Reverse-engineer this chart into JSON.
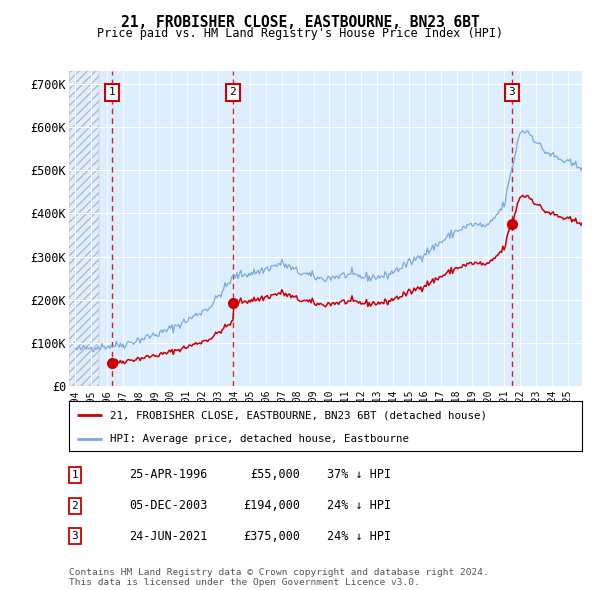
{
  "title": "21, FROBISHER CLOSE, EASTBOURNE, BN23 6BT",
  "subtitle": "Price paid vs. HM Land Registry's House Price Index (HPI)",
  "property_label": "21, FROBISHER CLOSE, EASTBOURNE, BN23 6BT (detached house)",
  "hpi_label": "HPI: Average price, detached house, Eastbourne",
  "sale_dates_num": [
    1996.32,
    2003.92,
    2021.48
  ],
  "sale_prices": [
    55000,
    194000,
    375000
  ],
  "sale_labels": [
    "1",
    "2",
    "3"
  ],
  "sale_annotations": [
    {
      "label": "1",
      "date": "25-APR-1996",
      "price": "£55,000",
      "hpi": "37% ↓ HPI"
    },
    {
      "label": "2",
      "date": "05-DEC-2003",
      "price": "£194,000",
      "hpi": "24% ↓ HPI"
    },
    {
      "label": "3",
      "date": "24-JUN-2021",
      "price": "£375,000",
      "hpi": "24% ↓ HPI"
    }
  ],
  "ylim": [
    0,
    730000
  ],
  "yticks": [
    0,
    100000,
    200000,
    300000,
    400000,
    500000,
    600000,
    700000
  ],
  "ytick_labels": [
    "£0",
    "£100K",
    "£200K",
    "£300K",
    "£400K",
    "£500K",
    "£600K",
    "£700K"
  ],
  "xlim_start": 1993.6,
  "xlim_end": 2025.9,
  "xticks": [
    1994,
    1995,
    1996,
    1997,
    1998,
    1999,
    2000,
    2001,
    2002,
    2003,
    2004,
    2005,
    2006,
    2007,
    2008,
    2009,
    2010,
    2011,
    2012,
    2013,
    2014,
    2015,
    2016,
    2017,
    2018,
    2019,
    2020,
    2021,
    2022,
    2023,
    2024,
    2025
  ],
  "hatch_end": 1995.5,
  "property_color": "#cc0000",
  "hpi_color": "#7aaadd",
  "vline_color": "#cc0000",
  "plot_bg": "#ddeeff",
  "footer_text": "Contains HM Land Registry data © Crown copyright and database right 2024.\nThis data is licensed under the Open Government Licence v3.0.",
  "hpi_anchors_years": [
    1994.0,
    1995.0,
    1996.0,
    1997.0,
    1998.0,
    1999.5,
    2001.0,
    2002.5,
    2004.0,
    2005.5,
    2007.0,
    2008.0,
    2009.5,
    2011.0,
    2012.5,
    2013.5,
    2015.0,
    2016.5,
    2018.0,
    2019.0,
    2020.0,
    2021.0,
    2022.0,
    2022.5,
    2023.5,
    2024.5,
    2025.5
  ],
  "hpi_anchors_vals": [
    85000,
    90000,
    93000,
    97000,
    108000,
    125000,
    152000,
    185000,
    255000,
    265000,
    285000,
    265000,
    248000,
    258000,
    252000,
    255000,
    285000,
    320000,
    360000,
    375000,
    370000,
    420000,
    590000,
    590000,
    545000,
    525000,
    510000
  ],
  "noise_seed": 42,
  "noise_scale": 5000
}
